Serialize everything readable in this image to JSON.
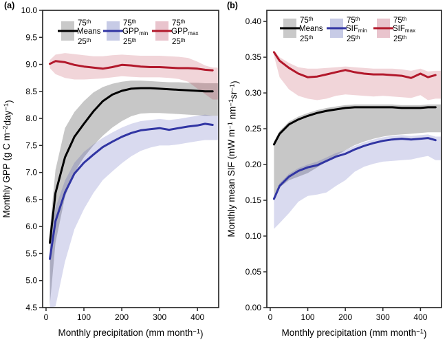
{
  "figure": {
    "background": "#ffffff",
    "axis_color": "#2b2b2b"
  },
  "chart_data": [
    {
      "type": "line",
      "panel_label": "(a)",
      "x_label_parts": [
        {
          "t": "Monthly precipitation (mm month"
        },
        {
          "t": "−1",
          "s": "sup"
        },
        {
          "t": ")"
        }
      ],
      "y_label_parts": [
        {
          "t": "Monthly GPP (g C m"
        },
        {
          "t": "−2",
          "s": "sup"
        },
        {
          "t": "day"
        },
        {
          "t": "−1",
          "s": "sup"
        },
        {
          "t": ")"
        }
      ],
      "xlim": [
        -9,
        456
      ],
      "ylim": [
        4.5,
        10.0
      ],
      "x_tick_values": [
        0,
        100,
        200,
        300,
        400
      ],
      "x_tick_labels": [
        "0",
        "100",
        "200",
        "300",
        "400"
      ],
      "y_tick_values": [
        4.5,
        5.0,
        5.5,
        6.0,
        6.5,
        7.0,
        7.5,
        8.0,
        8.5,
        9.0,
        9.5,
        10.0
      ],
      "y_tick_labels": [
        "4.5",
        "5.0",
        "5.5",
        "6.0",
        "6.5",
        "7.0",
        "7.5",
        "8.0",
        "8.5",
        "9.0",
        "9.5",
        "10.0"
      ],
      "legend_percentile_top_parts": [
        {
          "t": "75"
        },
        {
          "t": "th",
          "s": "sup"
        }
      ],
      "legend_percentile_bottom_parts": [
        {
          "t": "25"
        },
        {
          "t": "th",
          "s": "sup"
        }
      ],
      "x": [
        10,
        25,
        50,
        75,
        100,
        125,
        150,
        175,
        200,
        225,
        250,
        275,
        300,
        325,
        350,
        375,
        400,
        420,
        440
      ],
      "series": [
        {
          "id": "gpp-means",
          "legend_label_parts": [
            {
              "t": "Means"
            }
          ],
          "color": "#000000",
          "band_fill": "rgba(130,130,130,0.45)",
          "legend_box_fill": "#c9c9c9",
          "values": [
            5.7,
            6.62,
            7.28,
            7.66,
            7.9,
            8.13,
            8.32,
            8.44,
            8.51,
            8.55,
            8.56,
            8.56,
            8.55,
            8.54,
            8.53,
            8.52,
            8.51,
            8.5,
            8.5
          ],
          "p75": [
            5.95,
            7.05,
            7.82,
            8.12,
            8.32,
            8.48,
            8.58,
            8.64,
            8.68,
            8.7,
            8.7,
            8.69,
            8.68,
            8.67,
            8.67,
            8.66,
            8.66,
            8.65,
            8.65
          ],
          "p25": [
            4.55,
            5.7,
            6.55,
            7.0,
            7.28,
            7.5,
            7.68,
            7.83,
            7.95,
            8.04,
            8.09,
            8.1,
            8.1,
            8.09,
            8.08,
            8.07,
            8.06,
            8.05,
            8.05
          ]
        },
        {
          "id": "gpp-min",
          "legend_label_parts": [
            {
              "t": "GPP"
            },
            {
              "t": "min",
              "s": "sub"
            }
          ],
          "color": "#3135a3",
          "band_fill": "rgba(51,58,168,0.19)",
          "legend_box_fill": "#c7cbe6",
          "values": [
            5.4,
            6.1,
            6.63,
            6.98,
            7.18,
            7.33,
            7.47,
            7.57,
            7.66,
            7.73,
            7.78,
            7.8,
            7.82,
            7.79,
            7.82,
            7.85,
            7.87,
            7.9,
            7.88
          ],
          "p75": [
            5.62,
            6.35,
            6.85,
            7.18,
            7.38,
            7.52,
            7.64,
            7.74,
            7.83,
            7.9,
            7.95,
            7.97,
            7.99,
            7.97,
            7.99,
            8.02,
            8.05,
            8.07,
            8.05
          ],
          "p25": [
            4.45,
            4.52,
            5.35,
            5.95,
            6.32,
            6.62,
            6.86,
            7.02,
            7.17,
            7.3,
            7.4,
            7.46,
            7.5,
            7.5,
            7.52,
            7.55,
            7.58,
            7.6,
            7.6
          ]
        },
        {
          "id": "gpp-max",
          "legend_label_parts": [
            {
              "t": "GPP"
            },
            {
              "t": "max",
              "s": "sub"
            }
          ],
          "color": "#b2182b",
          "band_fill": "rgba(178,24,43,0.18)",
          "legend_box_fill": "#e9c4cd",
          "values": [
            9.01,
            9.06,
            9.04,
            8.99,
            8.96,
            8.94,
            8.92,
            8.95,
            8.99,
            8.98,
            8.96,
            8.95,
            8.95,
            8.94,
            8.93,
            8.93,
            8.92,
            8.9,
            8.89
          ],
          "p75": [
            9.08,
            9.18,
            9.21,
            9.19,
            9.17,
            9.15,
            9.15,
            9.17,
            9.18,
            9.17,
            9.16,
            9.16,
            9.16,
            9.15,
            9.14,
            9.12,
            9.05,
            8.98,
            8.94
          ],
          "p25": [
            8.93,
            8.82,
            8.75,
            8.72,
            8.72,
            8.73,
            8.74,
            8.76,
            8.78,
            8.77,
            8.76,
            8.76,
            8.76,
            8.75,
            8.73,
            8.68,
            8.55,
            8.45,
            8.35
          ]
        }
      ]
    },
    {
      "type": "line",
      "panel_label": "(b)",
      "x_label_parts": [
        {
          "t": "Monthly precipitation (mm month"
        },
        {
          "t": "−1",
          "s": "sup"
        },
        {
          "t": ")"
        }
      ],
      "y_label_parts": [
        {
          "t": "Monthly mean SIF (mW m"
        },
        {
          "t": "−1",
          "s": "sup"
        },
        {
          "t": " nm"
        },
        {
          "t": "−1",
          "s": "sup"
        },
        {
          "t": "sr"
        },
        {
          "t": "−1",
          "s": "sup"
        },
        {
          "t": ")"
        }
      ],
      "xlim": [
        -9,
        456
      ],
      "ylim": [
        0,
        0.4155
      ],
      "x_tick_values": [
        0,
        100,
        200,
        300,
        400
      ],
      "x_tick_labels": [
        "0",
        "100",
        "200",
        "300",
        "400"
      ],
      "y_tick_values": [
        0,
        0.05,
        0.1,
        0.15,
        0.2,
        0.25,
        0.3,
        0.35,
        0.4
      ],
      "y_tick_labels": [
        "0.00",
        "0.05",
        "0.10",
        "0.15",
        "0.20",
        "0.25",
        "0.30",
        "0.35",
        "0.40"
      ],
      "legend_percentile_top_parts": [
        {
          "t": "75"
        },
        {
          "t": "th",
          "s": "sup"
        }
      ],
      "legend_percentile_bottom_parts": [
        {
          "t": "25"
        },
        {
          "t": "th",
          "s": "sup"
        }
      ],
      "x": [
        10,
        25,
        50,
        75,
        100,
        125,
        150,
        175,
        200,
        225,
        250,
        275,
        300,
        325,
        350,
        375,
        400,
        420,
        440
      ],
      "series": [
        {
          "id": "sif-means",
          "legend_label_parts": [
            {
              "t": "Means"
            }
          ],
          "color": "#000000",
          "band_fill": "rgba(130,130,130,0.45)",
          "legend_box_fill": "#c9c9c9",
          "values": [
            0.228,
            0.243,
            0.256,
            0.263,
            0.268,
            0.272,
            0.275,
            0.277,
            0.279,
            0.28,
            0.28,
            0.28,
            0.28,
            0.28,
            0.279,
            0.279,
            0.279,
            0.28,
            0.28
          ],
          "p75": [
            0.232,
            0.247,
            0.26,
            0.267,
            0.272,
            0.276,
            0.279,
            0.281,
            0.283,
            0.284,
            0.284,
            0.284,
            0.284,
            0.284,
            0.283,
            0.283,
            0.283,
            0.284,
            0.284
          ],
          "p25": [
            0.157,
            0.168,
            0.178,
            0.183,
            0.188,
            0.196,
            0.204,
            0.212,
            0.22,
            0.227,
            0.232,
            0.236,
            0.239,
            0.241,
            0.242,
            0.243,
            0.244,
            0.245,
            0.245
          ]
        },
        {
          "id": "sif-min",
          "legend_label_parts": [
            {
              "t": "SIF"
            },
            {
              "t": "min",
              "s": "sub"
            }
          ],
          "color": "#3135a3",
          "band_fill": "rgba(51,58,168,0.19)",
          "legend_box_fill": "#c7cbe6",
          "values": [
            0.152,
            0.17,
            0.183,
            0.191,
            0.196,
            0.199,
            0.205,
            0.211,
            0.215,
            0.221,
            0.226,
            0.23,
            0.233,
            0.235,
            0.236,
            0.235,
            0.236,
            0.237,
            0.234
          ],
          "p75": [
            0.156,
            0.174,
            0.187,
            0.195,
            0.2,
            0.204,
            0.21,
            0.216,
            0.22,
            0.226,
            0.231,
            0.235,
            0.238,
            0.24,
            0.241,
            0.24,
            0.241,
            0.242,
            0.239
          ],
          "p25": [
            0.11,
            0.118,
            0.132,
            0.148,
            0.156,
            0.158,
            0.161,
            0.17,
            0.178,
            0.19,
            0.197,
            0.201,
            0.204,
            0.205,
            0.206,
            0.207,
            0.21,
            0.212,
            0.206
          ]
        },
        {
          "id": "sif-max",
          "legend_label_parts": [
            {
              "t": "SIF"
            },
            {
              "t": "max",
              "s": "sub"
            }
          ],
          "color": "#b2182b",
          "band_fill": "rgba(178,24,43,0.18)",
          "legend_box_fill": "#e9c4cd",
          "values": [
            0.357,
            0.345,
            0.335,
            0.327,
            0.322,
            0.323,
            0.326,
            0.329,
            0.332,
            0.329,
            0.327,
            0.326,
            0.326,
            0.325,
            0.324,
            0.321,
            0.327,
            0.322,
            0.325
          ],
          "p75": [
            0.359,
            0.35,
            0.342,
            0.336,
            0.334,
            0.334,
            0.335,
            0.336,
            0.337,
            0.336,
            0.335,
            0.334,
            0.334,
            0.334,
            0.333,
            0.331,
            0.334,
            0.33,
            0.331
          ],
          "p25": [
            0.352,
            0.322,
            0.305,
            0.296,
            0.292,
            0.29,
            0.292,
            0.296,
            0.298,
            0.297,
            0.296,
            0.295,
            0.296,
            0.295,
            0.294,
            0.293,
            0.297,
            0.29,
            0.292
          ]
        }
      ]
    }
  ]
}
